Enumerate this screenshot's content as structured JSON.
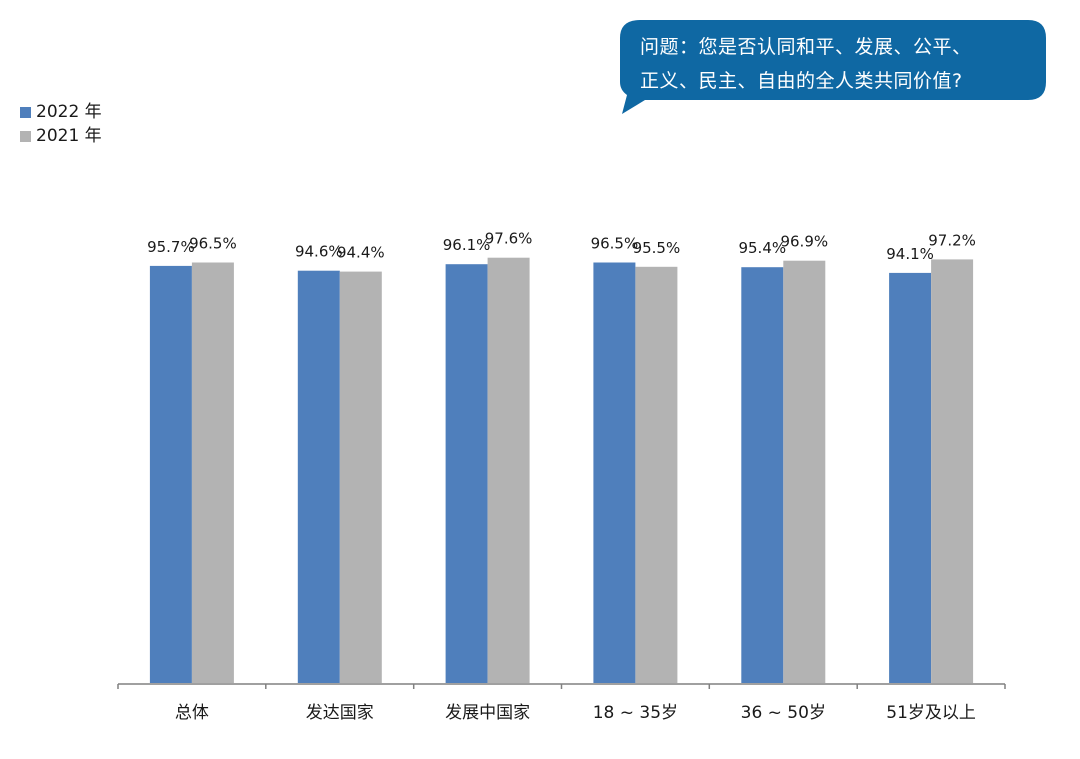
{
  "question": {
    "line1": "问题：您是否认同和平、发展、公平、",
    "line2": "正义、民主、自由的全人类共同价值?"
  },
  "colors": {
    "series_2022": "#4f7fbc",
    "series_2021": "#b3b3b3",
    "bubble": "#0f68a3",
    "axis": "#808080"
  },
  "chart_data": {
    "type": "bar",
    "categories": [
      "总体",
      "发达国家",
      "发展中国家",
      "18 ~ 35岁",
      "36 ~ 50岁",
      "51岁及以上"
    ],
    "series": [
      {
        "name": "2022 年",
        "values": [
          95.7,
          94.6,
          96.1,
          96.5,
          95.4,
          94.1
        ],
        "labels": [
          "95.7%",
          "94.6%",
          "96.1%",
          "96.5%",
          "95.4%",
          "94.1%"
        ]
      },
      {
        "name": "2021 年",
        "values": [
          96.5,
          94.4,
          97.6,
          95.5,
          96.9,
          97.2
        ],
        "labels": [
          "96.5%",
          "94.4%",
          "97.6%",
          "95.5%",
          "96.9%",
          "97.2%"
        ]
      }
    ],
    "ylim": [
      0,
      100
    ],
    "unit": "%",
    "grid": false,
    "legend": "top-left"
  }
}
